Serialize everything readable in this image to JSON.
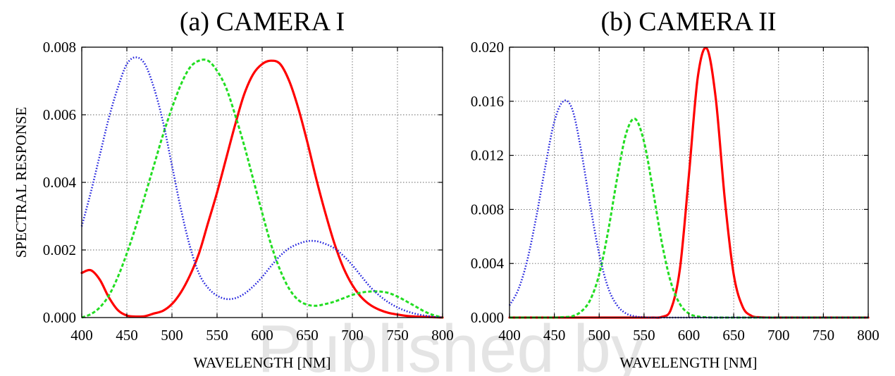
{
  "watermark": "Published by",
  "chart_data": [
    {
      "type": "line",
      "title": "(a)  CAMERA I",
      "xlabel": "WAVELENGTH [NM]",
      "ylabel": "SPECTRAL RESPONSE",
      "xlim": [
        400,
        800
      ],
      "ylim": [
        0,
        0.008
      ],
      "xticks": [
        400,
        450,
        500,
        550,
        600,
        650,
        700,
        750,
        800
      ],
      "yticks": [
        0,
        0.002,
        0.004,
        0.006,
        0.008
      ],
      "ytick_labels": [
        "0.000",
        "0.002",
        "0.004",
        "0.006",
        "0.008"
      ],
      "grid": true,
      "x": [
        400,
        410,
        420,
        430,
        440,
        450,
        460,
        470,
        480,
        490,
        500,
        510,
        520,
        530,
        540,
        550,
        560,
        570,
        580,
        590,
        600,
        610,
        620,
        630,
        640,
        650,
        660,
        670,
        680,
        690,
        700,
        710,
        720,
        730,
        740,
        750,
        760,
        770,
        780,
        790,
        800
      ],
      "series": [
        {
          "color": "#ff0000",
          "style": "solid",
          "values": [
            0.00132,
            0.0014,
            0.00112,
            0.0006,
            0.00022,
            6e-05,
            3e-05,
            4e-05,
            0.00012,
            0.0002,
            0.0004,
            0.00075,
            0.00125,
            0.0019,
            0.0028,
            0.0037,
            0.0047,
            0.0057,
            0.0066,
            0.0072,
            0.0075,
            0.0076,
            0.0075,
            0.007,
            0.0062,
            0.0052,
            0.0041,
            0.0031,
            0.0022,
            0.00148,
            0.00096,
            0.0006,
            0.00037,
            0.00023,
            0.00014,
            9e-05,
            5e-05,
            3e-05,
            2e-05,
            1e-05,
            0.0
          ]
        },
        {
          "color": "#22dd22",
          "style": "dashed",
          "values": [
            0.0,
            0.0001,
            0.0003,
            0.00065,
            0.0012,
            0.0019,
            0.0027,
            0.0036,
            0.0045,
            0.0054,
            0.0062,
            0.0069,
            0.0074,
            0.0076,
            0.0076,
            0.0073,
            0.0068,
            0.006,
            0.0051,
            0.0041,
            0.0031,
            0.00215,
            0.0014,
            0.00085,
            0.00052,
            0.00038,
            0.00035,
            0.0004,
            0.00047,
            0.00057,
            0.00067,
            0.00074,
            0.00077,
            0.00077,
            0.00073,
            0.00062,
            0.00048,
            0.00033,
            0.00018,
            7e-05,
            0.0
          ]
        },
        {
          "color": "#2222dd",
          "style": "dotted",
          "values": [
            0.0027,
            0.0037,
            0.0048,
            0.0059,
            0.0068,
            0.0075,
            0.0077,
            0.0075,
            0.0068,
            0.0058,
            0.0045,
            0.0032,
            0.0021,
            0.0013,
            0.00088,
            0.00065,
            0.00055,
            0.00057,
            0.0007,
            0.00092,
            0.0012,
            0.00153,
            0.00183,
            0.00205,
            0.00218,
            0.00226,
            0.00226,
            0.00218,
            0.00205,
            0.00183,
            0.00155,
            0.00122,
            0.0009,
            0.00065,
            0.00045,
            0.0003,
            0.00019,
            0.00011,
            6e-05,
            2e-05,
            0.0
          ]
        }
      ]
    },
    {
      "type": "line",
      "title": "(b)  CAMERA II",
      "xlabel": "WAVELENGTH [NM]",
      "ylabel": "",
      "xlim": [
        400,
        800
      ],
      "ylim": [
        0,
        0.02
      ],
      "xticks": [
        400,
        450,
        500,
        550,
        600,
        650,
        700,
        750,
        800
      ],
      "yticks": [
        0,
        0.004,
        0.008,
        0.012,
        0.016,
        0.02
      ],
      "ytick_labels": [
        "0.000",
        "0.004",
        "0.008",
        "0.012",
        "0.016",
        "0.020"
      ],
      "grid": true,
      "x": [
        400,
        410,
        420,
        430,
        440,
        450,
        460,
        470,
        480,
        490,
        500,
        510,
        520,
        530,
        540,
        550,
        560,
        570,
        580,
        590,
        600,
        610,
        620,
        630,
        640,
        650,
        660,
        670,
        680,
        690,
        700,
        710,
        720,
        730,
        740,
        750,
        760,
        770,
        780,
        790,
        800
      ],
      "series": [
        {
          "color": "#ff0000",
          "style": "solid",
          "values": [
            0,
            0,
            0,
            0,
            0,
            0,
            0,
            0,
            0,
            0,
            0,
            0,
            0,
            0,
            0,
            0,
            0,
            5e-05,
            0.0006,
            0.0036,
            0.0105,
            0.0178,
            0.0199,
            0.0162,
            0.0088,
            0.0032,
            0.0008,
            0.00012,
            2e-05,
            0,
            0,
            0,
            0,
            0,
            0,
            0,
            0,
            0,
            0,
            0,
            0
          ]
        },
        {
          "color": "#22dd22",
          "style": "dashed",
          "values": [
            0,
            0,
            0,
            0,
            0,
            0,
            3e-05,
            0.0001,
            0.00045,
            0.0013,
            0.0032,
            0.0064,
            0.0103,
            0.0136,
            0.0147,
            0.013,
            0.0094,
            0.0055,
            0.0026,
            0.001,
            0.0003,
            8e-05,
            2e-05,
            0,
            0,
            0,
            0,
            0,
            0,
            0,
            0,
            0,
            0,
            0,
            0,
            0,
            0,
            0,
            0,
            0,
            0
          ]
        },
        {
          "color": "#2222dd",
          "style": "dotted",
          "values": [
            0.0009,
            0.0021,
            0.0043,
            0.0075,
            0.0112,
            0.0145,
            0.016,
            0.0154,
            0.0123,
            0.0083,
            0.0047,
            0.0022,
            0.0009,
            0.0003,
            9e-05,
            2e-05,
            0,
            0,
            0,
            0,
            0,
            0,
            0,
            0,
            0,
            0,
            0,
            0,
            0,
            0,
            0,
            0,
            0,
            0,
            0,
            0,
            0,
            0,
            0,
            0,
            0
          ]
        }
      ]
    }
  ]
}
